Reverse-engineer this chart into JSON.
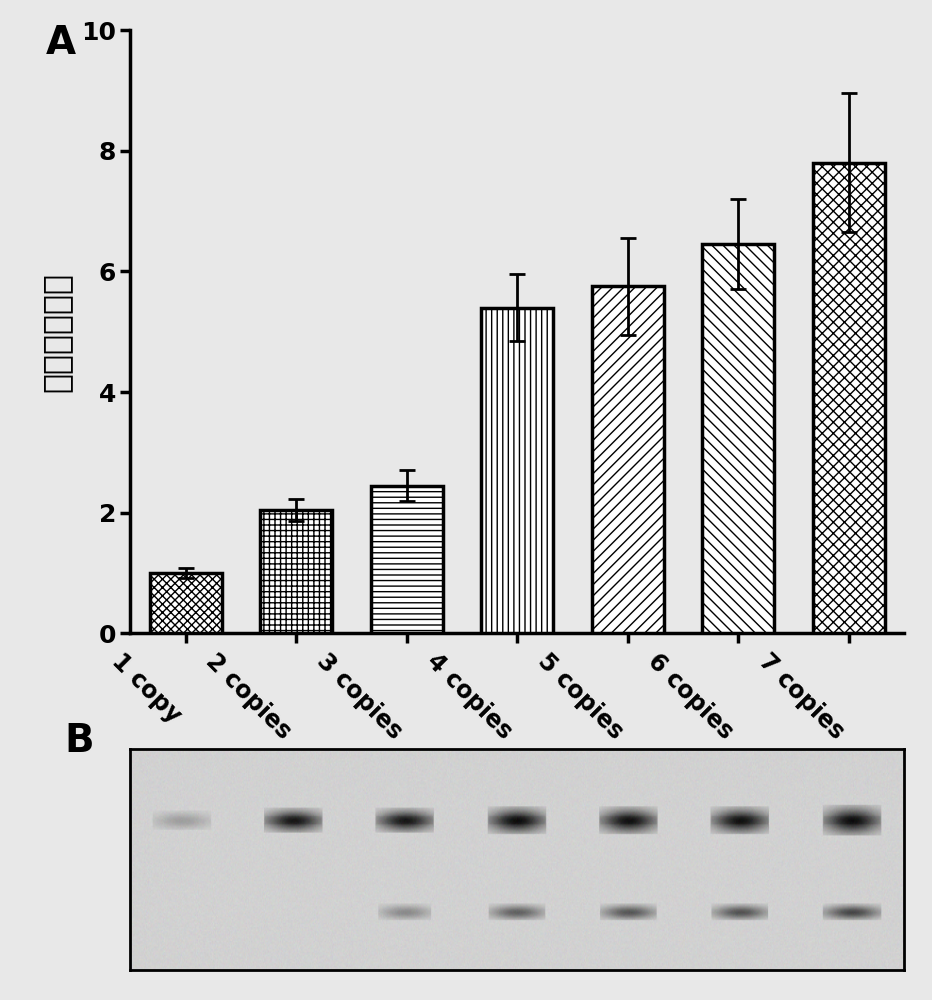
{
  "categories": [
    "1 copy",
    "2 copies",
    "3 copies",
    "4 copies",
    "5 copies",
    "6 copies",
    "7 copies"
  ],
  "values": [
    1.0,
    2.05,
    2.45,
    5.4,
    5.75,
    6.45,
    7.8
  ],
  "errors": [
    0.08,
    0.18,
    0.25,
    0.55,
    0.8,
    0.75,
    1.15
  ],
  "bar_facecolor": "white",
  "bar_edgecolor": "black",
  "bar_linewidth": 2.5,
  "error_capsize": 6,
  "error_linewidth": 2.0,
  "ylabel": "相对表达水平",
  "panel_A_label": "A",
  "panel_B_label": "B",
  "ylim": [
    0,
    10
  ],
  "yticks": [
    0,
    2,
    4,
    6,
    8,
    10
  ],
  "xlabel_rotation": -45,
  "fig_facecolor": "#e8e8e8",
  "ax_facecolor": "#e8e8e8",
  "blot_bg_color": 0.82
}
